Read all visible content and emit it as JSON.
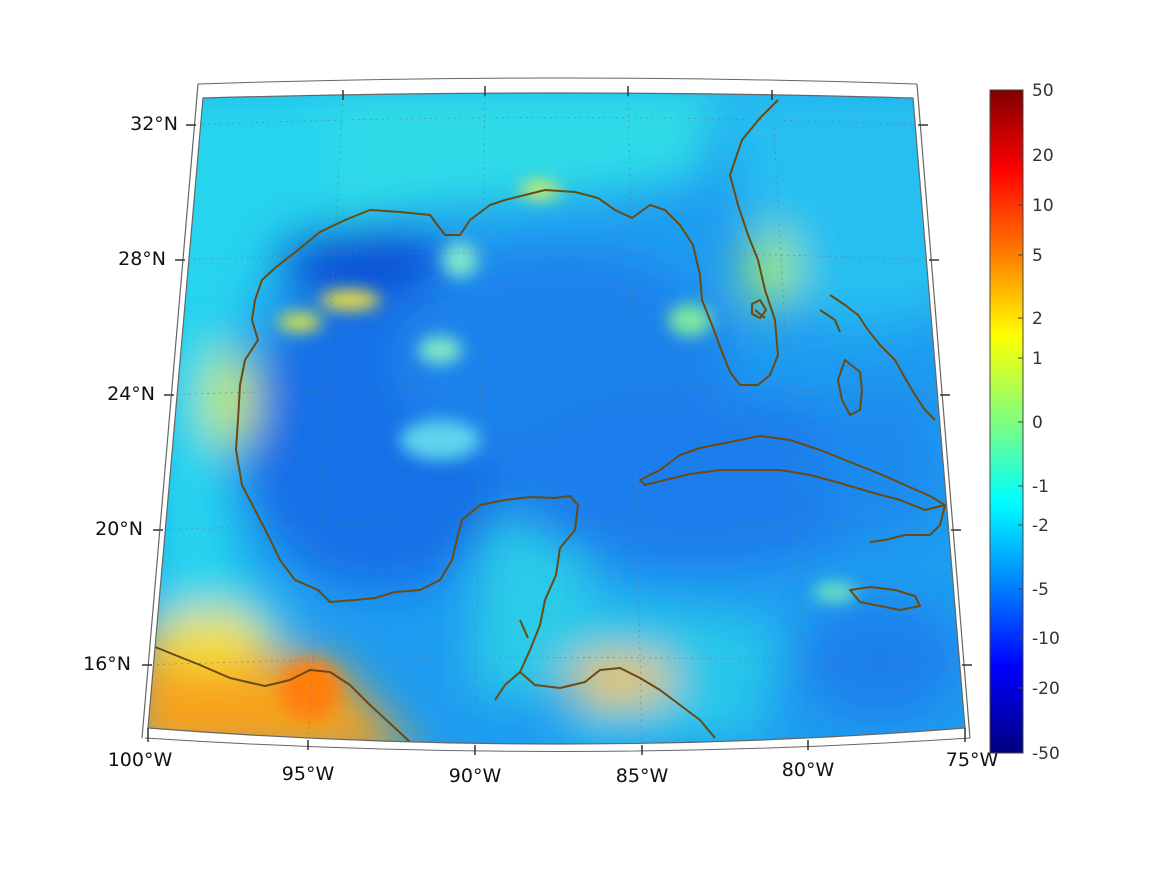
{
  "map": {
    "region": "Gulf of Mexico and Caribbean",
    "lat_ticks": [
      "32°N",
      "28°N",
      "24°N",
      "20°N",
      "16°N"
    ],
    "lon_ticks": [
      "100°W",
      "95°W",
      "90°W",
      "85°W",
      "80°W",
      "75°W"
    ],
    "lat_range": [
      14,
      33
    ],
    "lon_range": [
      -100,
      -75
    ],
    "grid": true,
    "coastline_color": "#6b4a12"
  },
  "colorbar": {
    "labels": [
      "50",
      "20",
      "10",
      "5",
      "2",
      "1",
      "0",
      "-1",
      "-2",
      "-5",
      "-10",
      "-20",
      "-50"
    ],
    "colormap": "jet",
    "colors": [
      "#00007f",
      "#0000ff",
      "#007fff",
      "#00ffff",
      "#7fff7f",
      "#ffff00",
      "#ff7f00",
      "#ff0000",
      "#7f0000"
    ]
  }
}
